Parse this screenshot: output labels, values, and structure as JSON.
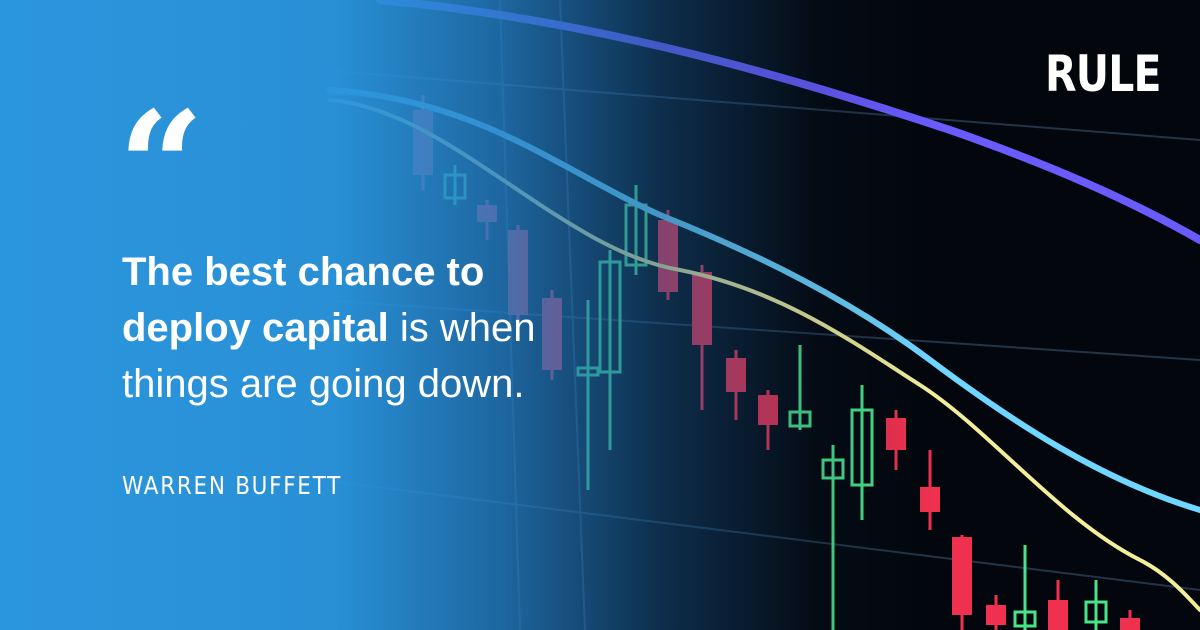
{
  "brand": {
    "logo_text": "RULE"
  },
  "quote": {
    "mark": "“",
    "bold_part": "The best chance to deploy capital",
    "regular_part": " is when things are going down."
  },
  "author": {
    "name": "WARREN BUFFETT"
  },
  "background_image": {
    "description_hint": "candlestick-chart",
    "colors": {
      "gradient_blue": "#2A96DE",
      "candle_up": "#4BE38A",
      "candle_down": "#F0304F",
      "line_blue": "#6FD6FF",
      "line_violet": "#6A5BFF",
      "line_yellow": "#F2EE9A"
    }
  }
}
